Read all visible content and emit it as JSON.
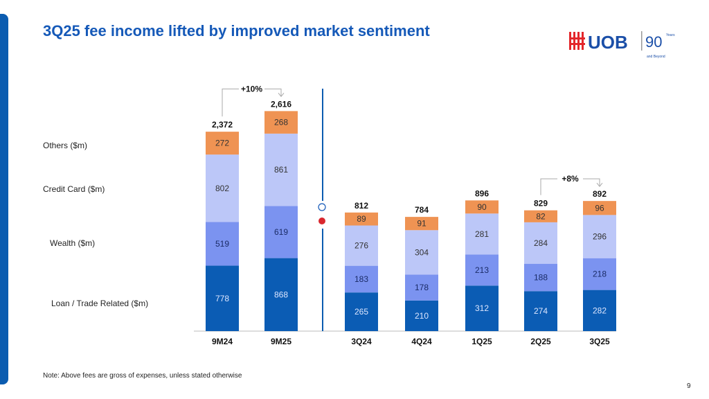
{
  "title": "3Q25 fee income lifted by improved market sentiment",
  "logo_text": "UOB",
  "logo_badge": "90 Years and Beyond",
  "note": "Note: Above fees are gross of expenses, unless stated otherwise",
  "page_number": "9",
  "colors": {
    "loan": "#0b5cb4",
    "wealth": "#7b93f0",
    "credit": "#bcc7f8",
    "others": "#ef9353",
    "title": "#1559b8"
  },
  "chart_data": [
    {
      "type": "bar",
      "stacked": true,
      "categories": [
        "9M24",
        "9M25"
      ],
      "series": [
        {
          "name": "Loan / Trade Related ($m)",
          "values": [
            778,
            868
          ]
        },
        {
          "name": "Wealth ($m)",
          "values": [
            519,
            619
          ]
        },
        {
          "name": "Credit Card ($m)",
          "values": [
            802,
            861
          ]
        },
        {
          "name": "Others ($m)",
          "values": [
            272,
            268
          ]
        }
      ],
      "totals": [
        "2,372",
        "2,616"
      ],
      "annotation": "+10%"
    },
    {
      "type": "bar",
      "stacked": true,
      "categories": [
        "3Q24",
        "4Q24",
        "1Q25",
        "2Q25",
        "3Q25"
      ],
      "series": [
        {
          "name": "Loan / Trade Related ($m)",
          "values": [
            265,
            210,
            312,
            274,
            282
          ]
        },
        {
          "name": "Wealth ($m)",
          "values": [
            183,
            178,
            213,
            188,
            218
          ]
        },
        {
          "name": "Credit Card ($m)",
          "values": [
            276,
            304,
            281,
            284,
            296
          ]
        },
        {
          "name": "Others ($m)",
          "values": [
            89,
            91,
            90,
            82,
            96
          ]
        }
      ],
      "totals": [
        "812",
        "784",
        "896",
        "829",
        "892"
      ],
      "annotation": "+8%"
    }
  ]
}
